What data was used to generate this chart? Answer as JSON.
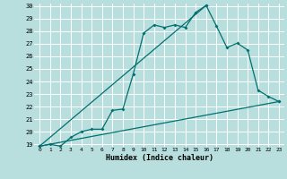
{
  "title": "",
  "xlabel": "Humidex (Indice chaleur)",
  "bg_color": "#b8dede",
  "grid_color": "#ffffff",
  "line_color": "#007070",
  "xlim": [
    -0.5,
    23.5
  ],
  "ylim": [
    18.8,
    30.2
  ],
  "xticks": [
    0,
    1,
    2,
    3,
    4,
    5,
    6,
    7,
    8,
    9,
    10,
    11,
    12,
    13,
    14,
    15,
    16,
    17,
    18,
    19,
    20,
    21,
    22,
    23
  ],
  "yticks": [
    19,
    20,
    21,
    22,
    23,
    24,
    25,
    26,
    27,
    28,
    29,
    30
  ],
  "series1_x": [
    0,
    1,
    2,
    3,
    4,
    5,
    6,
    7,
    8,
    9,
    10,
    11,
    12,
    13,
    14,
    15,
    16,
    17,
    18,
    19,
    20,
    21,
    22,
    23
  ],
  "series1_y": [
    18.85,
    19.0,
    18.85,
    19.55,
    20.0,
    20.2,
    20.2,
    21.7,
    21.8,
    24.6,
    27.85,
    28.5,
    28.3,
    28.5,
    28.3,
    29.5,
    30.05,
    28.4,
    26.7,
    27.05,
    26.5,
    23.3,
    22.8,
    22.4
  ],
  "series2_x": [
    0,
    23
  ],
  "series2_y": [
    18.85,
    22.4
  ],
  "series3_x": [
    0,
    16
  ],
  "series3_y": [
    18.85,
    30.05
  ]
}
